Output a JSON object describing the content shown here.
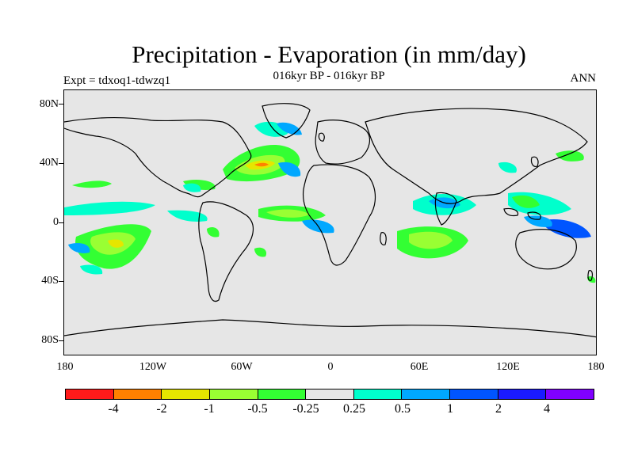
{
  "map": {
    "title": "Precipitation - Evaporation (in mm/day)",
    "subtitle": "016kyr BP - 016kyr BP",
    "left_label": "Expt = tdxoq1-tdwzq1",
    "right_label": "ANN",
    "lat_ticks": [
      "80N",
      "40N",
      "0",
      "40S",
      "80S"
    ],
    "lon_ticks": [
      "180",
      "120W",
      "60W",
      "0",
      "60E",
      "120E",
      "180"
    ],
    "colorbar": {
      "colors": [
        "#ff1a1a",
        "#ff8000",
        "#e6e600",
        "#99ff33",
        "#33ff33",
        "#e6e6e6",
        "#00ffcc",
        "#00a8ff",
        "#0055ff",
        "#1a1aff",
        "#8000ff"
      ],
      "labels": [
        "-4",
        "-2",
        "-1",
        "-0.5",
        "-0.25",
        "0.25",
        "0.5",
        "1",
        "2",
        "4"
      ]
    }
  }
}
